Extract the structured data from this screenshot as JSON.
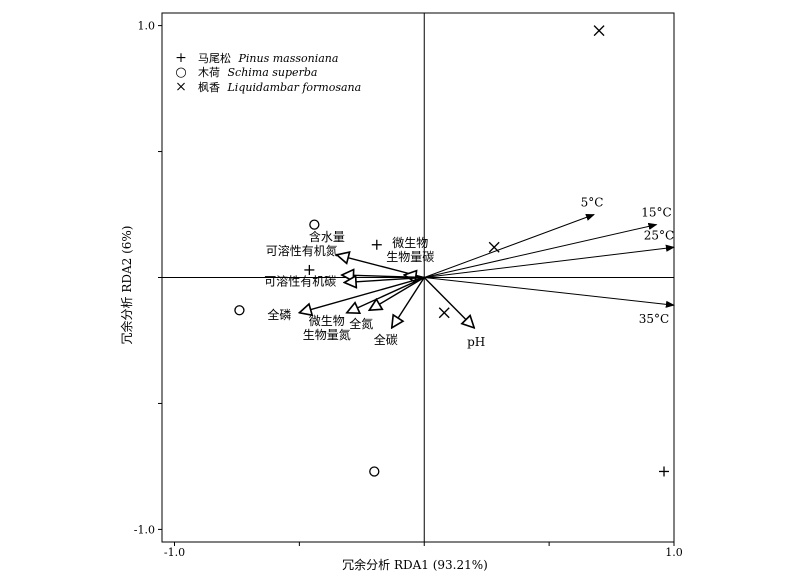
{
  "chart_data": {
    "type": "scatter",
    "subtype": "rda-biplot",
    "title": "",
    "xlabel": "冗余分析 RDA1 (93.21%)",
    "ylabel": "冗余分析 RDA2 (6%)",
    "xlim": [
      -1.05,
      1.0
    ],
    "ylim": [
      -1.05,
      1.05
    ],
    "x_tick_labels": [
      "-1.0",
      "1.0"
    ],
    "x_tick_values": [
      -1.0,
      1.0
    ],
    "y_tick_labels": [
      "1.0",
      "-1.0"
    ],
    "y_tick_values": [
      1.0,
      -1.0
    ],
    "minor_tick_step": 0.5,
    "grid": false,
    "origin_lines": true,
    "legend_position": "top-left",
    "legend": [
      {
        "marker": "plus",
        "symbol": "+",
        "text_cn": "马尾松",
        "text_latin": "Pinus massoniana"
      },
      {
        "marker": "circle",
        "symbol": "○",
        "text_cn": "木荷",
        "text_latin": "Schima superba"
      },
      {
        "marker": "cross",
        "symbol": "×",
        "text_cn": "枫香",
        "text_latin": "Liquidambar formosana"
      }
    ],
    "points": [
      {
        "species": "plus",
        "x": -0.46,
        "y": 0.03
      },
      {
        "species": "plus",
        "x": -0.19,
        "y": 0.13
      },
      {
        "species": "plus",
        "x": 0.96,
        "y": -0.77
      },
      {
        "species": "circle",
        "x": -0.44,
        "y": 0.21
      },
      {
        "species": "circle",
        "x": -0.74,
        "y": -0.13
      },
      {
        "species": "circle",
        "x": -0.2,
        "y": -0.77
      },
      {
        "species": "cross",
        "x": 0.7,
        "y": 0.98
      },
      {
        "species": "cross",
        "x": 0.28,
        "y": 0.12
      },
      {
        "species": "cross",
        "x": 0.08,
        "y": -0.14
      }
    ],
    "environment_arrows": [
      {
        "label": "5°C",
        "x": 0.68,
        "y": 0.25
      },
      {
        "label": "15°C",
        "x": 0.93,
        "y": 0.21
      },
      {
        "label": "25°C",
        "x": 1.0,
        "y": 0.12
      },
      {
        "label": "35°C",
        "x": 1.0,
        "y": -0.11
      }
    ],
    "variable_arrows": [
      {
        "label": "含水量",
        "x": -0.35,
        "y": 0.09
      },
      {
        "label": "微生物\n生物量碳",
        "x": -0.08,
        "y": 0.01
      },
      {
        "label": "可溶性有机氮",
        "x": -0.33,
        "y": 0.01
      },
      {
        "label": "可溶性有机碳",
        "x": -0.32,
        "y": -0.02
      },
      {
        "label": "全磷",
        "x": -0.5,
        "y": -0.14
      },
      {
        "label": "微生物\n生物量氮",
        "x": -0.31,
        "y": -0.14
      },
      {
        "label": "全氮",
        "x": -0.22,
        "y": -0.13
      },
      {
        "label": "全碳",
        "x": -0.13,
        "y": -0.2
      },
      {
        "label": "pH",
        "x": 0.2,
        "y": -0.2
      }
    ],
    "arrow_style": {
      "environment": "filled-head",
      "variables": "open-head"
    },
    "colors": {
      "ink": "#000000",
      "background": "#ffffff"
    }
  }
}
